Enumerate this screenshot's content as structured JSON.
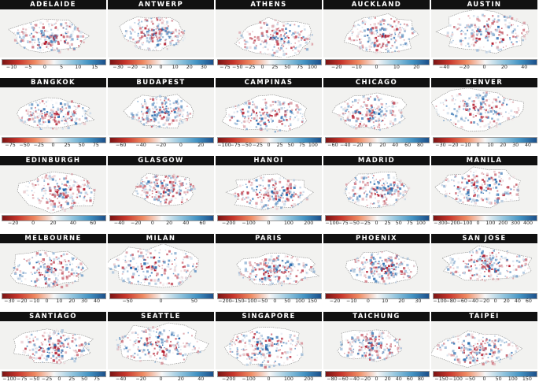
{
  "colors": {
    "title_bg": "#111111",
    "title_fg": "#ffffff",
    "negative": "#b2182b",
    "neutral": "#f7f7f7",
    "positive": "#2166ac"
  },
  "panels": [
    {
      "city": "ADELAIDE",
      "ticks": [
        "−10",
        "−5",
        "0",
        "5",
        "10",
        "15"
      ]
    },
    {
      "city": "ANTWERP",
      "ticks": [
        "−30",
        "−20",
        "−10",
        "0",
        "10",
        "20",
        "30"
      ]
    },
    {
      "city": "ATHENS",
      "ticks": [
        "−75",
        "−50",
        "−25",
        "0",
        "25",
        "50",
        "75",
        "100"
      ]
    },
    {
      "city": "AUCKLAND",
      "ticks": [
        "−20",
        "−10",
        "0",
        "10",
        "20"
      ]
    },
    {
      "city": "AUSTIN",
      "ticks": [
        "−40",
        "−20",
        "0",
        "20",
        "40"
      ]
    },
    {
      "city": "BANGKOK",
      "ticks": [
        "−75",
        "−50",
        "−25",
        "0",
        "25",
        "50",
        "75"
      ]
    },
    {
      "city": "BUDAPEST",
      "ticks": [
        "−60",
        "−40",
        "−20",
        "0",
        "20"
      ]
    },
    {
      "city": "CAMPINAS",
      "ticks": [
        "−100",
        "−75",
        "−50",
        "−25",
        "0",
        "25",
        "50",
        "75",
        "100"
      ]
    },
    {
      "city": "CHICAGO",
      "ticks": [
        "−60",
        "−40",
        "−20",
        "0",
        "20",
        "40",
        "60",
        "80"
      ]
    },
    {
      "city": "DENVER",
      "ticks": [
        "−30",
        "−20",
        "−10",
        "0",
        "10",
        "20",
        "30",
        "40"
      ]
    },
    {
      "city": "EDINBURGH",
      "ticks": [
        "−20",
        "0",
        "20",
        "40",
        "60"
      ]
    },
    {
      "city": "GLASGOW",
      "ticks": [
        "−40",
        "−20",
        "0",
        "20",
        "40",
        "60"
      ]
    },
    {
      "city": "HANOI",
      "ticks": [
        "−200",
        "−100",
        "0",
        "100",
        "200"
      ]
    },
    {
      "city": "MADRID",
      "ticks": [
        "−100",
        "−75",
        "−50",
        "−25",
        "0",
        "25",
        "50",
        "75",
        "100"
      ]
    },
    {
      "city": "MANILA",
      "ticks": [
        "−300",
        "−200",
        "−100",
        "0",
        "100",
        "200",
        "300",
        "400"
      ]
    },
    {
      "city": "MELBOURNE",
      "ticks": [
        "−30",
        "−20",
        "−10",
        "0",
        "10",
        "20",
        "30",
        "40"
      ]
    },
    {
      "city": "MILAN",
      "ticks": [
        "−50",
        "0",
        "50"
      ]
    },
    {
      "city": "PARIS",
      "ticks": [
        "−200",
        "−150",
        "−100",
        "−50",
        "0",
        "50",
        "100",
        "150"
      ]
    },
    {
      "city": "PHOENIX",
      "ticks": [
        "−20",
        "−10",
        "0",
        "10",
        "20",
        "30"
      ]
    },
    {
      "city": "SAN JOSE",
      "ticks": [
        "−100",
        "−80",
        "−60",
        "−40",
        "−20",
        "0",
        "20",
        "40",
        "60"
      ]
    },
    {
      "city": "SANTIAGO",
      "ticks": [
        "−100",
        "−75",
        "−50",
        "−25",
        "0",
        "25",
        "50",
        "75"
      ]
    },
    {
      "city": "SEATTLE",
      "ticks": [
        "−40",
        "−20",
        "0",
        "20",
        "40"
      ]
    },
    {
      "city": "SINGAPORE",
      "ticks": [
        "−200",
        "−100",
        "0",
        "100",
        "200"
      ]
    },
    {
      "city": "TAICHUNG",
      "ticks": [
        "−80",
        "−60",
        "−40",
        "−20",
        "0",
        "20",
        "40",
        "60",
        "80"
      ]
    },
    {
      "city": "TAIPEI",
      "ticks": [
        "−150",
        "−100",
        "−50",
        "0",
        "50",
        "100",
        "150"
      ]
    }
  ]
}
